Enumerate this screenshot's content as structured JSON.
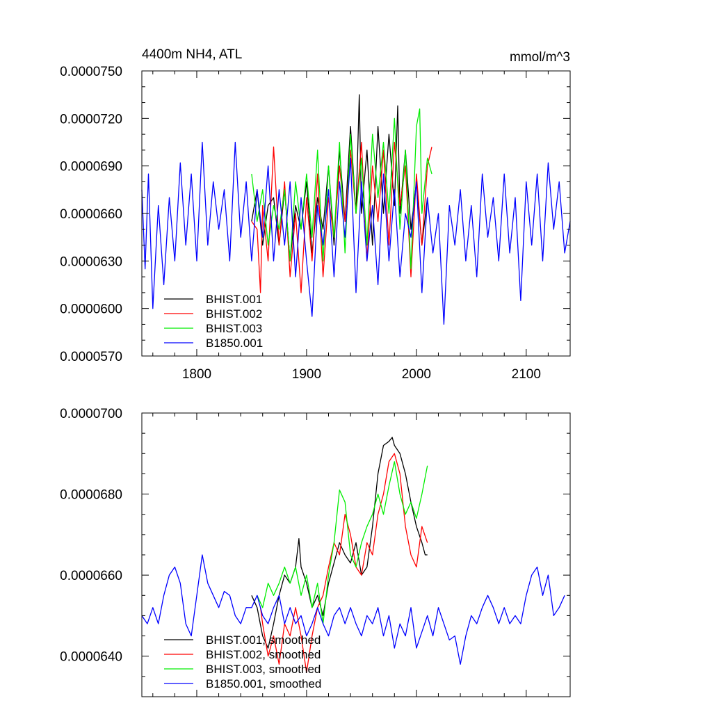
{
  "chart_data": [
    {
      "type": "line",
      "title": "4400m NH4, ATL",
      "units": "mmol/m^3",
      "xlim": [
        1750,
        2140
      ],
      "ylim": [
        5.7e-05,
        7.5e-05
      ],
      "xticks": [
        1800,
        1900,
        2000,
        2100
      ],
      "xtick_labels": [
        "1800",
        "1900",
        "2000",
        "2100"
      ],
      "yticks": [
        5.7e-05,
        6e-05,
        6.3e-05,
        6.6e-05,
        6.9e-05,
        7.2e-05,
        7.5e-05
      ],
      "ytick_labels": [
        "0.0000570",
        "0.0000600",
        "0.0000630",
        "0.0000660",
        "0.0000690",
        "0.0000720",
        "0.0000750"
      ],
      "grid": false,
      "legend_position": "bottom-left",
      "series": [
        {
          "name": "BHIST.001",
          "color": "#000000",
          "x": [
            1850,
            1855,
            1860,
            1865,
            1870,
            1875,
            1880,
            1885,
            1890,
            1895,
            1900,
            1905,
            1910,
            1915,
            1920,
            1925,
            1930,
            1935,
            1940,
            1945,
            1948,
            1950,
            1955,
            1960,
            1965,
            1970,
            1975,
            1980,
            1983,
            1985,
            1990,
            1995,
            2000,
            2005,
            2010
          ],
          "y": [
            6.55e-05,
            6.75e-05,
            6.4e-05,
            6.65e-05,
            6.7e-05,
            6.4e-05,
            6.75e-05,
            6.3e-05,
            6.65e-05,
            6.5e-05,
            6.8e-05,
            6.35e-05,
            6.7e-05,
            6.5e-05,
            6.9e-05,
            6.4e-05,
            7e-05,
            6.55e-05,
            7.15e-05,
            6.6e-05,
            7.35e-05,
            6.6e-05,
            7e-05,
            6.4e-05,
            7.15e-05,
            6.6e-05,
            7.1e-05,
            6.65e-05,
            7.28e-05,
            6.6e-05,
            7e-05,
            6.5e-05,
            6.8e-05,
            6.4e-05,
            6.7e-05
          ]
        },
        {
          "name": "BHIST.002",
          "color": "#ff0000",
          "x": [
            1850,
            1855,
            1858,
            1860,
            1865,
            1870,
            1875,
            1880,
            1885,
            1890,
            1895,
            1900,
            1905,
            1910,
            1915,
            1920,
            1925,
            1930,
            1935,
            1940,
            1945,
            1950,
            1955,
            1960,
            1965,
            1970,
            1975,
            1980,
            1985,
            1990,
            1995,
            2000,
            2005,
            2010,
            2014
          ],
          "y": [
            6.55e-05,
            6.5e-05,
            6.1e-05,
            6.65e-05,
            6.3e-05,
            7.02e-05,
            6.4e-05,
            6.8e-05,
            6.2e-05,
            6.6e-05,
            6.1e-05,
            6.7e-05,
            6.3e-05,
            6.85e-05,
            6.2e-05,
            6.7e-05,
            6.45e-05,
            6.9e-05,
            6.55e-05,
            7e-05,
            6.6e-05,
            7.05e-05,
            6.3e-05,
            6.9e-05,
            6.55e-05,
            7e-05,
            6.4e-05,
            7.05e-05,
            6.65e-05,
            6.9e-05,
            6.2e-05,
            6.85e-05,
            6.4e-05,
            6.9e-05,
            7.02e-05
          ]
        },
        {
          "name": "BHIST.003",
          "color": "#00ee00",
          "x": [
            1850,
            1855,
            1860,
            1865,
            1870,
            1875,
            1880,
            1885,
            1890,
            1895,
            1900,
            1905,
            1910,
            1915,
            1920,
            1925,
            1930,
            1935,
            1940,
            1945,
            1950,
            1955,
            1960,
            1965,
            1970,
            1975,
            1980,
            1985,
            1990,
            1995,
            2000,
            2003,
            2005,
            2010,
            2014
          ],
          "y": [
            6.85e-05,
            6.55e-05,
            6.75e-05,
            6.4e-05,
            6.65e-05,
            6.5e-05,
            6.75e-05,
            6.3e-05,
            6.8e-05,
            6.5e-05,
            6.85e-05,
            6.45e-05,
            7e-05,
            6.3e-05,
            6.9e-05,
            6.45e-05,
            7.05e-05,
            6.35e-05,
            7.1e-05,
            6.6e-05,
            6.95e-05,
            6.4e-05,
            7.1e-05,
            6.7e-05,
            7.05e-05,
            6.6e-05,
            7.2e-05,
            6.5e-05,
            7e-05,
            6.25e-05,
            7.15e-05,
            7.26e-05,
            6.6e-05,
            6.95e-05,
            6.85e-05
          ]
        },
        {
          "name": "B1850.001",
          "color": "#0000ff",
          "x": [
            1750,
            1753,
            1756,
            1760,
            1765,
            1770,
            1775,
            1780,
            1785,
            1790,
            1795,
            1800,
            1805,
            1810,
            1815,
            1820,
            1825,
            1830,
            1835,
            1840,
            1845,
            1850,
            1855,
            1860,
            1865,
            1870,
            1875,
            1880,
            1885,
            1890,
            1895,
            1900,
            1905,
            1910,
            1915,
            1920,
            1925,
            1930,
            1935,
            1940,
            1945,
            1950,
            1955,
            1960,
            1965,
            1970,
            1975,
            1980,
            1985,
            1990,
            1995,
            2000,
            2005,
            2010,
            2015,
            2020,
            2025,
            2030,
            2035,
            2040,
            2045,
            2050,
            2055,
            2060,
            2065,
            2070,
            2075,
            2080,
            2085,
            2090,
            2095,
            2100,
            2105,
            2110,
            2115,
            2120,
            2125,
            2130,
            2135,
            2140
          ],
          "y": [
            6.75e-05,
            6.25e-05,
            6.85e-05,
            6e-05,
            6.65e-05,
            6.15e-05,
            6.7e-05,
            6.3e-05,
            6.92e-05,
            6.4e-05,
            6.85e-05,
            6.3e-05,
            7.05e-05,
            6.4e-05,
            6.8e-05,
            6.5e-05,
            6.75e-05,
            6.3e-05,
            7.05e-05,
            6.45e-05,
            6.8e-05,
            6.3e-05,
            6.75e-05,
            6.45e-05,
            6.9e-05,
            6.3e-05,
            6.75e-05,
            6.4e-05,
            6.8e-05,
            6.2e-05,
            6.7e-05,
            6.3e-05,
            5.95e-05,
            6.65e-05,
            6.4e-05,
            6.75e-05,
            6.2e-05,
            6.8e-05,
            6.45e-05,
            6.95e-05,
            6.1e-05,
            6.8e-05,
            6.3e-05,
            6.65e-05,
            6.15e-05,
            6.85e-05,
            6.3e-05,
            6.75e-05,
            6.2e-05,
            6.6e-05,
            6.45e-05,
            6.8e-05,
            6.1e-05,
            6.7e-05,
            6.35e-05,
            6.6e-05,
            5.9e-05,
            6.65e-05,
            6.4e-05,
            6.75e-05,
            6.3e-05,
            6.65e-05,
            6.2e-05,
            6.85e-05,
            6.45e-05,
            6.7e-05,
            6.3e-05,
            6.85e-05,
            6.35e-05,
            6.7e-05,
            6.05e-05,
            6.8e-05,
            6.4e-05,
            6.85e-05,
            6.3e-05,
            6.92e-05,
            6.5e-05,
            6.8e-05,
            6.35e-05,
            6.55e-05
          ]
        }
      ]
    },
    {
      "type": "line",
      "xlim": [
        1750,
        2140
      ],
      "ylim": [
        6.3e-05,
        7e-05
      ],
      "xticks": [
        1800,
        1900,
        2000,
        2100
      ],
      "xtick_labels": [],
      "yticks": [
        6.4e-05,
        6.6e-05,
        6.8e-05,
        7e-05
      ],
      "ytick_labels": [
        "0.0000640",
        "0.0000660",
        "0.0000680",
        "0.0000700"
      ],
      "grid": false,
      "legend_position": "bottom-left",
      "series": [
        {
          "name": "BHIST.001, smoothed",
          "color": "#000000",
          "x": [
            1850,
            1855,
            1860,
            1865,
            1870,
            1875,
            1880,
            1885,
            1890,
            1893,
            1895,
            1900,
            1905,
            1910,
            1915,
            1920,
            1925,
            1930,
            1935,
            1940,
            1945,
            1950,
            1955,
            1960,
            1965,
            1970,
            1975,
            1978,
            1980,
            1985,
            1990,
            1995,
            2000,
            2005,
            2008,
            2010
          ],
          "y": [
            6.55e-05,
            6.52e-05,
            6.45e-05,
            6.42e-05,
            6.48e-05,
            6.55e-05,
            6.6e-05,
            6.58e-05,
            6.62e-05,
            6.69e-05,
            6.62e-05,
            6.58e-05,
            6.52e-05,
            6.55e-05,
            6.5e-05,
            6.58e-05,
            6.63e-05,
            6.68e-05,
            6.65e-05,
            6.63e-05,
            6.68e-05,
            6.6e-05,
            6.62e-05,
            6.72e-05,
            6.85e-05,
            6.92e-05,
            6.93e-05,
            6.94e-05,
            6.92e-05,
            6.9e-05,
            6.85e-05,
            6.78e-05,
            6.72e-05,
            6.68e-05,
            6.65e-05,
            6.65e-05
          ]
        },
        {
          "name": "BHIST.002, smoothed",
          "color": "#ff0000",
          "x": [
            1858,
            1860,
            1865,
            1870,
            1875,
            1880,
            1885,
            1890,
            1895,
            1900,
            1905,
            1910,
            1915,
            1920,
            1925,
            1930,
            1935,
            1940,
            1945,
            1950,
            1955,
            1960,
            1965,
            1970,
            1975,
            1980,
            1985,
            1990,
            1995,
            2000,
            2005,
            2010
          ],
          "y": [
            6.52e-05,
            6.48e-05,
            6.4e-05,
            6.45e-05,
            6.38e-05,
            6.48e-05,
            6.45e-05,
            6.52e-05,
            6.45e-05,
            6.36e-05,
            6.45e-05,
            6.52e-05,
            6.55e-05,
            6.62e-05,
            6.68e-05,
            6.65e-05,
            6.75e-05,
            6.7e-05,
            6.62e-05,
            6.6e-05,
            6.68e-05,
            6.65e-05,
            6.75e-05,
            6.8e-05,
            6.88e-05,
            6.9e-05,
            6.85e-05,
            6.72e-05,
            6.65e-05,
            6.62e-05,
            6.72e-05,
            6.68e-05
          ]
        },
        {
          "name": "BHIST.003, smoothed",
          "color": "#00ee00",
          "x": [
            1855,
            1860,
            1865,
            1870,
            1875,
            1880,
            1885,
            1890,
            1895,
            1900,
            1905,
            1910,
            1915,
            1920,
            1925,
            1930,
            1935,
            1940,
            1945,
            1950,
            1955,
            1960,
            1965,
            1970,
            1975,
            1980,
            1985,
            1990,
            1995,
            2000,
            2005,
            2010
          ],
          "y": [
            6.55e-05,
            6.52e-05,
            6.58e-05,
            6.55e-05,
            6.58e-05,
            6.62e-05,
            6.58e-05,
            6.62e-05,
            6.55e-05,
            6.6e-05,
            6.52e-05,
            6.58e-05,
            6.48e-05,
            6.6e-05,
            6.68e-05,
            6.81e-05,
            6.78e-05,
            6.65e-05,
            6.62e-05,
            6.68e-05,
            6.72e-05,
            6.75e-05,
            6.8e-05,
            6.75e-05,
            6.82e-05,
            6.88e-05,
            6.8e-05,
            6.75e-05,
            6.78e-05,
            6.74e-05,
            6.8e-05,
            6.87e-05
          ]
        },
        {
          "name": "B1850.001, smoothed",
          "color": "#0000ff",
          "x": [
            1750,
            1755,
            1760,
            1765,
            1770,
            1775,
            1780,
            1785,
            1790,
            1795,
            1800,
            1805,
            1810,
            1815,
            1820,
            1825,
            1830,
            1835,
            1840,
            1845,
            1850,
            1855,
            1860,
            1865,
            1870,
            1875,
            1880,
            1885,
            1890,
            1895,
            1900,
            1905,
            1910,
            1915,
            1920,
            1925,
            1930,
            1935,
            1940,
            1945,
            1950,
            1955,
            1960,
            1965,
            1970,
            1975,
            1980,
            1985,
            1990,
            1995,
            2000,
            2005,
            2010,
            2015,
            2020,
            2025,
            2030,
            2035,
            2040,
            2045,
            2050,
            2055,
            2060,
            2065,
            2070,
            2075,
            2080,
            2085,
            2090,
            2095,
            2100,
            2105,
            2110,
            2115,
            2120,
            2125,
            2130,
            2135
          ],
          "y": [
            6.5e-05,
            6.48e-05,
            6.52e-05,
            6.48e-05,
            6.55e-05,
            6.6e-05,
            6.62e-05,
            6.58e-05,
            6.48e-05,
            6.45e-05,
            6.55e-05,
            6.65e-05,
            6.58e-05,
            6.55e-05,
            6.52e-05,
            6.56e-05,
            6.55e-05,
            6.5e-05,
            6.48e-05,
            6.52e-05,
            6.52e-05,
            6.55e-05,
            6.5e-05,
            6.48e-05,
            6.52e-05,
            6.55e-05,
            6.48e-05,
            6.52e-05,
            6.48e-05,
            6.5e-05,
            6.45e-05,
            6.48e-05,
            6.52e-05,
            6.48e-05,
            6.45e-05,
            6.5e-05,
            6.52e-05,
            6.48e-05,
            6.52e-05,
            6.48e-05,
            6.45e-05,
            6.5e-05,
            6.48e-05,
            6.52e-05,
            6.45e-05,
            6.5e-05,
            6.42e-05,
            6.48e-05,
            6.45e-05,
            6.52e-05,
            6.42e-05,
            6.46e-05,
            6.5e-05,
            6.45e-05,
            6.52e-05,
            6.48e-05,
            6.44e-05,
            6.45e-05,
            6.38e-05,
            6.45e-05,
            6.5e-05,
            6.48e-05,
            6.52e-05,
            6.55e-05,
            6.52e-05,
            6.48e-05,
            6.52e-05,
            6.48e-05,
            6.5e-05,
            6.48e-05,
            6.55e-05,
            6.6e-05,
            6.62e-05,
            6.55e-05,
            6.6e-05,
            6.5e-05,
            6.52e-05,
            6.55e-05
          ]
        }
      ]
    }
  ]
}
